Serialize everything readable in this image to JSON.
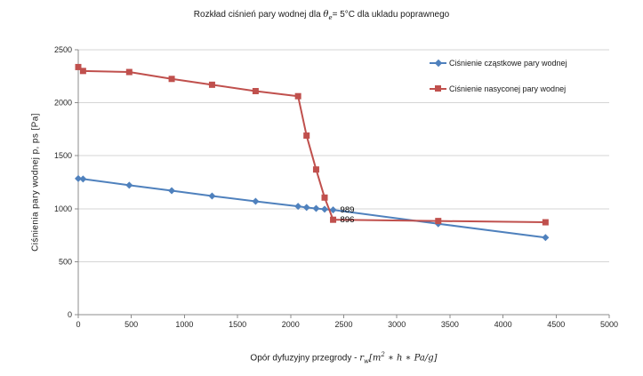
{
  "title": {
    "part1": "Rozkład ciśnień pary wodnej  dla ",
    "theta": "θ",
    "theta_sub": "e",
    "part2": "= 5°C dla ukladu poprawnego"
  },
  "xlabel": {
    "prefix": "Opór dyfuzyjny przegrody - ",
    "math_r": "r",
    "math_sub": "w",
    "math_open": "[m",
    "math_sup": "2",
    "math_rest": " ∗ h ∗ Pa/g]"
  },
  "ylabel": "Ciśnienia pary wodnej  p, ps  [Pa]",
  "chart_data": {
    "type": "line",
    "title": "Rozkład ciśnień pary wodnej dla θe= 5°C dla ukladu poprawnego",
    "xlabel": "Opór dyfuzyjny przegrody - rw[m2 ∗ h ∗ Pa/g]",
    "ylabel": "Ciśnienia pary wodnej p, ps [Pa]",
    "xlim": [
      0,
      5000
    ],
    "ylim": [
      0,
      2500
    ],
    "xticks": [
      0,
      500,
      1000,
      1500,
      2000,
      2500,
      3000,
      3500,
      4000,
      4500,
      5000
    ],
    "yticks": [
      0,
      500,
      1000,
      1500,
      2000,
      2500
    ],
    "grid": "horizontal",
    "legend_position": "top-right-inside",
    "x": [
      0,
      45,
      480,
      880,
      1260,
      1670,
      2070,
      2150,
      2240,
      2320,
      2400,
      3390,
      4400
    ],
    "series": [
      {
        "name": "Ciśnienie cząstkowe pary wodnej",
        "color": "#4F81BD",
        "marker": "diamond",
        "values": [
          1285,
          1280,
          1222,
          1170,
          1120,
          1070,
          1022,
          1012,
          1002,
          995,
          989,
          858,
          728
        ]
      },
      {
        "name": "Ciśnienie nasyconej pary wodnej",
        "color": "#C0504D",
        "marker": "square",
        "values": [
          2337,
          2300,
          2290,
          2225,
          2170,
          2110,
          2062,
          1690,
          1370,
          1105,
          896,
          884,
          872
        ]
      }
    ],
    "point_labels": [
      {
        "series": 0,
        "index": 10,
        "text": "989"
      },
      {
        "series": 1,
        "index": 10,
        "text": "896"
      }
    ],
    "colors": {
      "grid": "#D5D5D5",
      "axis": "#8C8C8C",
      "tick_text": "#262626",
      "label_text": "#000000"
    }
  }
}
